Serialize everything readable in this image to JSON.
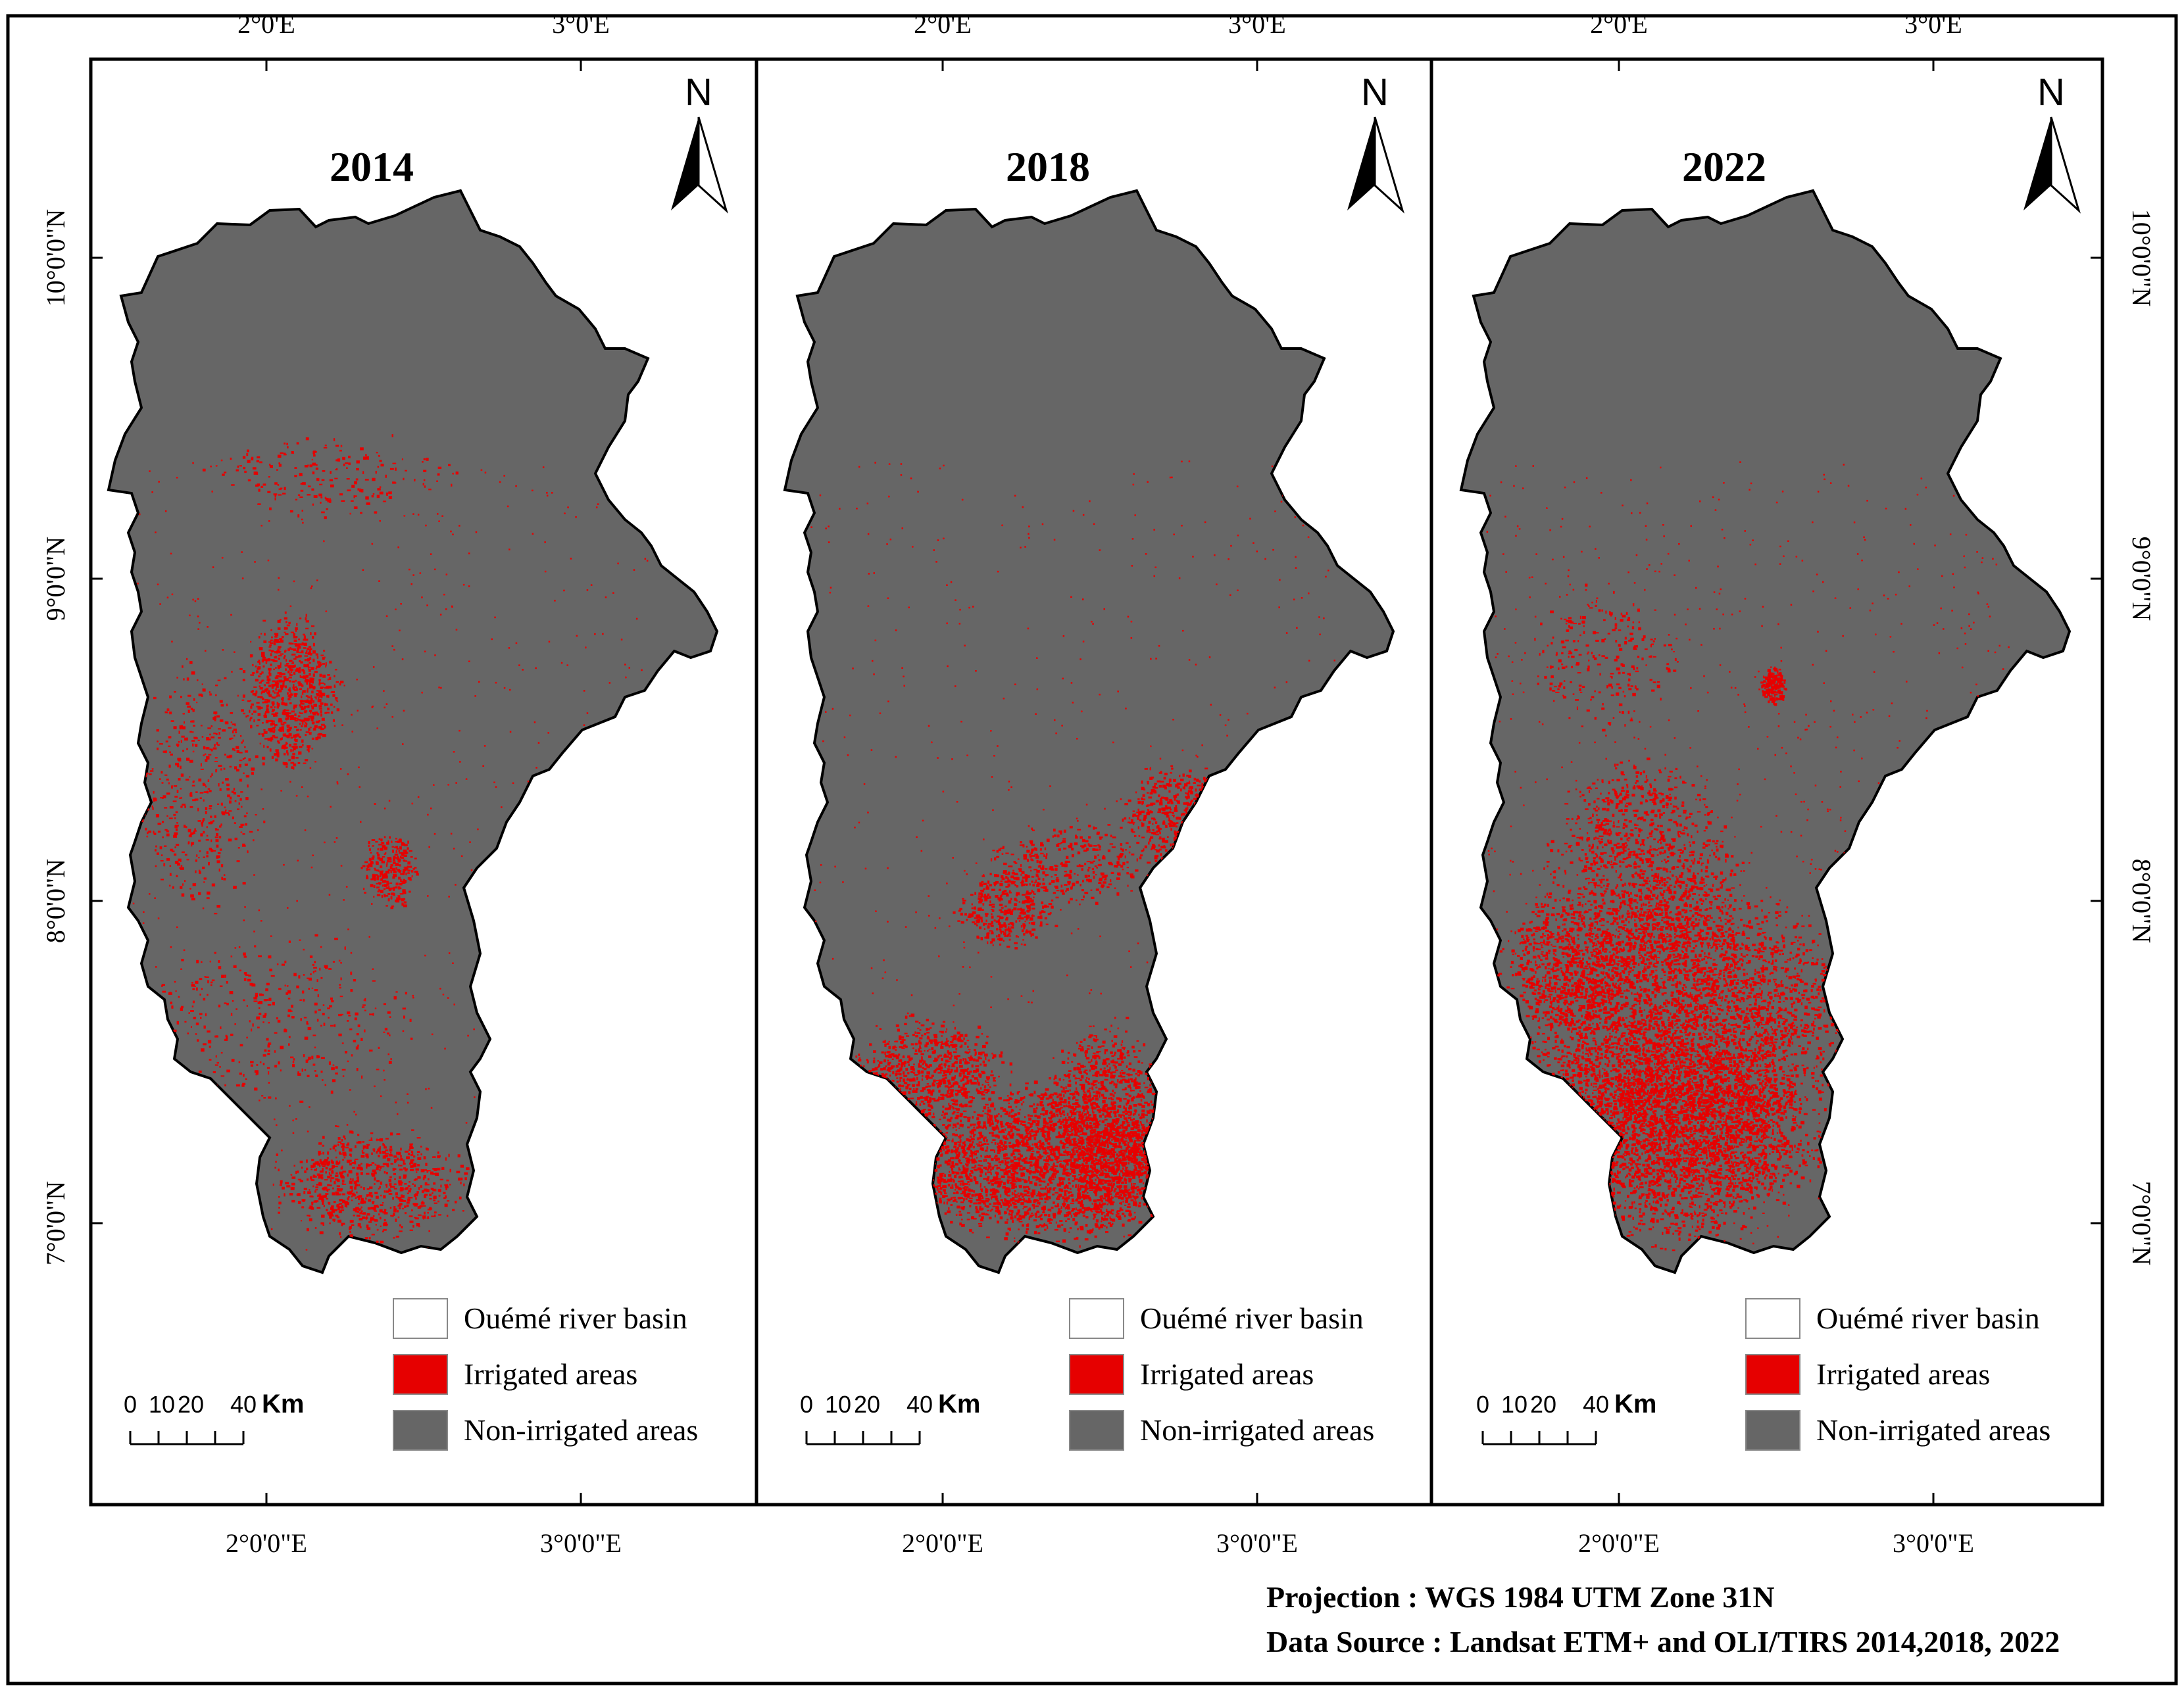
{
  "panels": [
    {
      "year": "2014",
      "irrigated_extent": "low",
      "irrigated_pattern": "scattered across central and southern basin"
    },
    {
      "year": "2018",
      "irrigated_extent": "medium",
      "irrigated_pattern": "concentrated in southern basin"
    },
    {
      "year": "2022",
      "irrigated_extent": "high",
      "irrigated_pattern": "dense across southern half of basin"
    }
  ],
  "north_arrow_label": "N",
  "graticule": {
    "top_labels": [
      "2°0'E",
      "3°0'E"
    ],
    "bottom_labels": [
      "2°0'0\"E",
      "3°0'0\"E"
    ],
    "left_labels": [
      "10°0'0\"N",
      "9°0'0\"N",
      "8°0'0\"N",
      "7°0'0\"N"
    ],
    "right_labels": [
      "10°0'0\"N",
      "9°0'0\"N",
      "8°0'0\"N",
      "7°0'0\"N"
    ]
  },
  "legend": {
    "items": [
      {
        "label": "Ouémé river basin",
        "color": "#ffffff"
      },
      {
        "label": "Irrigated areas",
        "color": "#e60000"
      },
      {
        "label": "Non-irrigated areas",
        "color": "#666666"
      }
    ]
  },
  "scale_bar": {
    "labels": [
      "0",
      "10",
      "20",
      "40"
    ],
    "unit": "Km"
  },
  "footer": {
    "projection": "Projection : WGS 1984 UTM Zone 31N",
    "source": "Data Source : Landsat ETM+ and OLI/TIRS 2014,2018, 2022"
  },
  "colors": {
    "basin_fill": "#666666",
    "irrigated": "#e60000",
    "frame": "#000000"
  }
}
